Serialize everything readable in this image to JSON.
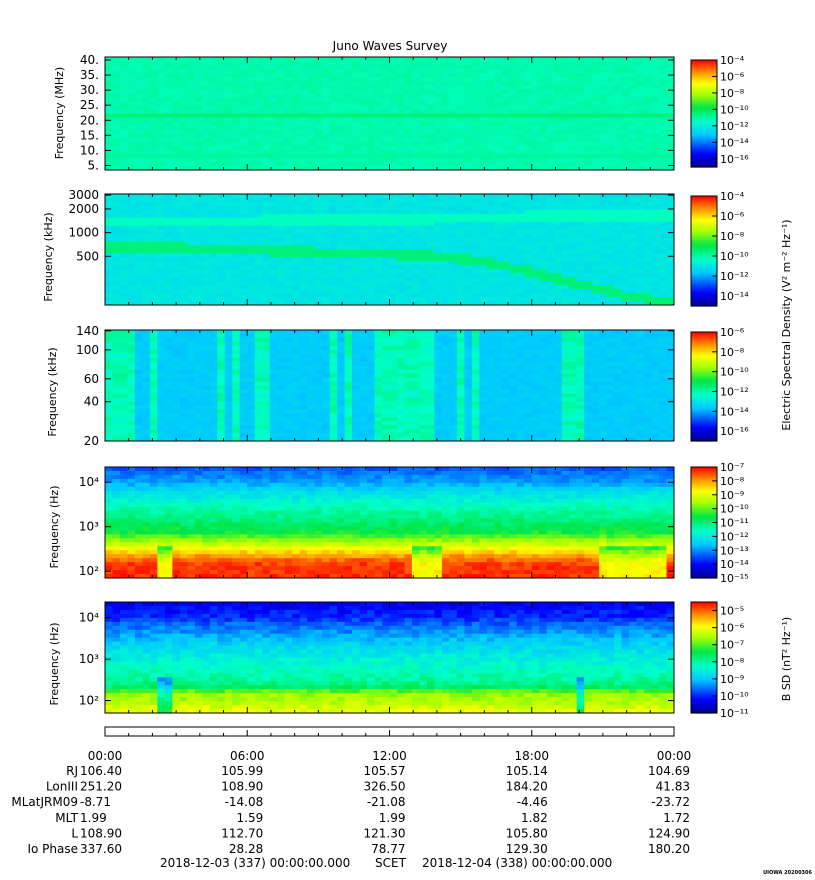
{
  "title": "Juno Waves Survey",
  "stamp": "UIOWA 20200306",
  "colorbar_labels": {
    "electric": "Electric Spectral Density (V² m⁻² Hz⁻¹)",
    "magnetic": "B SD (nT² Hz⁻¹)"
  },
  "chart_data": [
    {
      "type": "heatmap",
      "name": "panel-1",
      "ylabel": "Frequency (MHz)",
      "yscale": "linear",
      "ylim": [
        3.5,
        41
      ],
      "yticks": [
        5,
        10,
        15,
        20,
        25,
        30,
        35,
        40
      ],
      "ytick_labels": [
        "5.",
        "10.",
        "15.",
        "20.",
        "25.",
        "30.",
        "35.",
        "40."
      ],
      "xlim_hours": [
        0,
        24
      ],
      "colorbar": {
        "scale": "log",
        "range_exp": [
          -17,
          -4
        ],
        "tick_labels": [
          "10⁻⁴",
          "10⁻⁶",
          "10⁻⁸",
          "10⁻¹⁰",
          "10⁻¹²",
          "10⁻¹⁴",
          "10⁻¹⁶"
        ],
        "tick_values_exp": [
          -4,
          -6,
          -8,
          -10,
          -12,
          -14,
          -16
        ]
      },
      "background_exp": -11.2,
      "features": [
        {
          "kind": "band",
          "y": 21.2,
          "width": 1.4,
          "exp": -10.5
        },
        {
          "kind": "band",
          "y": 8.5,
          "width": 0.8,
          "exp": -11.0
        }
      ]
    },
    {
      "type": "heatmap",
      "name": "panel-2",
      "ylabel": "Frequency (kHz)",
      "yscale": "log",
      "ylim": [
        120,
        3100
      ],
      "yticks": [
        500,
        1000,
        2000,
        3000
      ],
      "ytick_labels": [
        "500",
        "1000",
        "2000",
        "3000"
      ],
      "xlim_hours": [
        0,
        24
      ],
      "colorbar": {
        "scale": "log",
        "range_exp": [
          -15,
          -4
        ],
        "tick_labels": [
          "10⁻⁴",
          "10⁻⁶",
          "10⁻⁸",
          "10⁻¹⁰",
          "10⁻¹²",
          "10⁻¹⁴"
        ],
        "tick_values_exp": [
          -4,
          -6,
          -8,
          -10,
          -12,
          -14
        ]
      },
      "background_exp": -11.0,
      "features": [
        {
          "kind": "line",
          "exp": -9.5,
          "width": 0.06,
          "hours": [
            0,
            3,
            6,
            9,
            12,
            14,
            16,
            18,
            20,
            22,
            24
          ],
          "khz": [
            640,
            640,
            600,
            560,
            530,
            500,
            420,
            310,
            220,
            155,
            125
          ]
        },
        {
          "kind": "line",
          "exp": -10.3,
          "width": 0.06,
          "hours": [
            0,
            4,
            8,
            12,
            16,
            18,
            20,
            24
          ],
          "khz": [
            1330,
            1330,
            1480,
            1480,
            1500,
            1620,
            1650,
            1650
          ]
        }
      ]
    },
    {
      "type": "heatmap",
      "name": "panel-3",
      "ylabel": "Frequency (kHz)",
      "yscale": "log",
      "ylim": [
        20,
        142
      ],
      "yticks": [
        20,
        40,
        60,
        100,
        140
      ],
      "ytick_labels": [
        "20",
        "40",
        "60",
        "100",
        "140"
      ],
      "xlim_hours": [
        0,
        24
      ],
      "colorbar": {
        "scale": "log",
        "range_exp": [
          -17,
          -6
        ],
        "tick_labels": [
          "10⁻⁶",
          "10⁻⁸",
          "10⁻¹⁰",
          "10⁻¹²",
          "10⁻¹⁴",
          "10⁻¹⁶"
        ],
        "tick_values_exp": [
          -6,
          -8,
          -10,
          -12,
          -14,
          -16
        ]
      },
      "background_exp": -13.6,
      "features": [
        {
          "kind": "bursts",
          "exp": -12.2,
          "hours": [
            0.2,
            0.6,
            1.1,
            2.1,
            4.8,
            5.6,
            6.6,
            9.6,
            10.2,
            11.6,
            12.0,
            12.4,
            13.0,
            13.6,
            15.0,
            15.6,
            19.6,
            20.1
          ]
        }
      ]
    },
    {
      "type": "heatmap",
      "name": "panel-4",
      "ylabel": "Frequency (Hz)",
      "yscale": "log",
      "ylim": [
        70,
        22000
      ],
      "yticks": [
        100,
        1000,
        10000
      ],
      "ytick_labels": [
        "10²",
        "10³",
        "10⁴"
      ],
      "xlim_hours": [
        0,
        24
      ],
      "colorbar": {
        "scale": "log",
        "range_exp": [
          -15,
          -7
        ],
        "tick_labels": [
          "10⁻⁷",
          "10⁻⁸",
          "10⁻⁹",
          "10⁻¹⁰",
          "10⁻¹¹",
          "10⁻¹²",
          "10⁻¹³",
          "10⁻¹⁴",
          "10⁻¹⁵"
        ],
        "tick_values_exp": [
          -7,
          -8,
          -9,
          -10,
          -11,
          -12,
          -13,
          -14,
          -15
        ]
      },
      "profile_hz": [
        70,
        150,
        250,
        330,
        450,
        700,
        1500,
        4000,
        10000,
        22000
      ],
      "profile_exp": [
        -7.3,
        -7.4,
        -8.3,
        -8.9,
        -9.5,
        -10.5,
        -11.1,
        -11.9,
        -12.9,
        -13.5
      ],
      "dips": [
        {
          "h0": 2.3,
          "h1": 2.7
        },
        {
          "h0": 13.0,
          "h1": 14.2
        },
        {
          "h0": 20.8,
          "h1": 23.6
        }
      ]
    },
    {
      "type": "heatmap",
      "name": "panel-5",
      "ylabel": "Frequency (Hz)",
      "yscale": "log",
      "ylim": [
        50,
        24000
      ],
      "yticks": [
        100,
        1000,
        10000
      ],
      "ytick_labels": [
        "10²",
        "10³",
        "10⁴"
      ],
      "xlim_hours": [
        0,
        24
      ],
      "colorbar": {
        "scale": "log",
        "range_exp": [
          -11,
          -4.5
        ],
        "tick_labels": [
          "10⁻⁵",
          "10⁻⁶",
          "10⁻⁷",
          "10⁻⁸",
          "10⁻⁹",
          "10⁻¹⁰",
          "10⁻¹¹"
        ],
        "tick_values_exp": [
          -5,
          -6,
          -7,
          -8,
          -9,
          -10,
          -11
        ]
      },
      "profile_hz": [
        50,
        90,
        150,
        200,
        300,
        600,
        1500,
        4000,
        10000,
        24000
      ],
      "profile_exp": [
        -6.0,
        -6.5,
        -6.7,
        -7.6,
        -8.0,
        -8.3,
        -8.7,
        -9.3,
        -10.0,
        -10.4
      ],
      "dips": [
        {
          "h0": 2.2,
          "h1": 2.8
        },
        {
          "h0": 19.9,
          "h1": 20.2
        }
      ]
    }
  ],
  "time_axis": {
    "tick_hours": [
      0,
      6,
      12,
      18,
      24
    ],
    "tick_labels": [
      "00:00",
      "06:00",
      "12:00",
      "18:00",
      "00:00"
    ]
  },
  "ephemeris": [
    {
      "label": "RJ",
      "values": [
        "106.40",
        "105.99",
        "105.57",
        "105.14",
        "104.69"
      ]
    },
    {
      "label": "LonIII",
      "values": [
        "251.20",
        "108.90",
        "326.50",
        "184.20",
        "41.83"
      ]
    },
    {
      "label": "MLatJRM09",
      "values": [
        "-8.71",
        "-14.08",
        "-21.08",
        "-4.46",
        "-23.72"
      ]
    },
    {
      "label": "MLT",
      "values": [
        "1.99",
        "1.59",
        "1.99",
        "1.82",
        "1.72"
      ]
    },
    {
      "label": "L",
      "values": [
        "108.90",
        "112.70",
        "121.30",
        "105.80",
        "124.90"
      ]
    },
    {
      "label": "Io Phase",
      "values": [
        "337.60",
        "28.28",
        "78.77",
        "129.30",
        "180.20"
      ]
    }
  ],
  "footer": {
    "start": "2018-12-03 (337) 00:00:00.000",
    "frame": "SCET",
    "end": "2018-12-04 (338) 00:00:00.000"
  }
}
